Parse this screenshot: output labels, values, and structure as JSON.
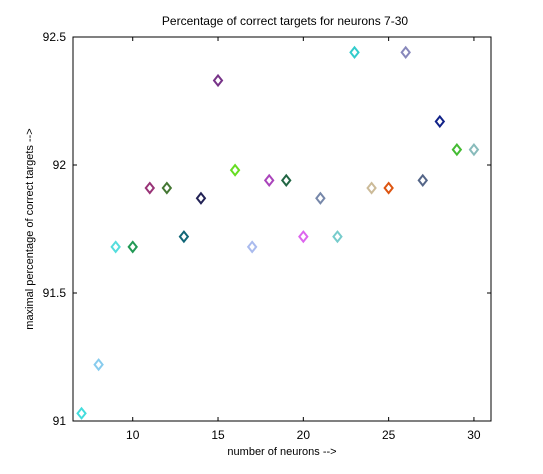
{
  "chart_data": {
    "type": "scatter",
    "title": "Percentage of correct targets for neurons 7-30",
    "xlabel": "number of neurons -->",
    "ylabel": "maximal percentage of correct targets -->",
    "xlim": [
      6.5,
      31
    ],
    "ylim": [
      91,
      92.5
    ],
    "xticks": [
      10,
      15,
      20,
      25,
      30
    ],
    "xtick_labels": [
      "10",
      "15",
      "20",
      "25",
      "30"
    ],
    "yticks": [
      91,
      91.5,
      92,
      92.5
    ],
    "ytick_labels": [
      "91",
      "91.5",
      "92",
      "92.5"
    ],
    "grid": false,
    "marker": "diamond",
    "points": [
      {
        "x": 7,
        "y": 91.03,
        "color": "#44dddd"
      },
      {
        "x": 8,
        "y": 91.22,
        "color": "#88ccee"
      },
      {
        "x": 9,
        "y": 91.68,
        "color": "#55dddd"
      },
      {
        "x": 10,
        "y": 91.68,
        "color": "#229955"
      },
      {
        "x": 11,
        "y": 91.91,
        "color": "#993377"
      },
      {
        "x": 12,
        "y": 91.91,
        "color": "#447733"
      },
      {
        "x": 13,
        "y": 91.72,
        "color": "#116677"
      },
      {
        "x": 14,
        "y": 91.87,
        "color": "#222255"
      },
      {
        "x": 15,
        "y": 92.33,
        "color": "#773388"
      },
      {
        "x": 16,
        "y": 91.98,
        "color": "#66dd22"
      },
      {
        "x": 17,
        "y": 91.68,
        "color": "#aabbee"
      },
      {
        "x": 18,
        "y": 91.94,
        "color": "#aa44bb"
      },
      {
        "x": 19,
        "y": 91.94,
        "color": "#226644"
      },
      {
        "x": 20,
        "y": 91.72,
        "color": "#dd66ee"
      },
      {
        "x": 21,
        "y": 91.87,
        "color": "#7788aa"
      },
      {
        "x": 22,
        "y": 91.72,
        "color": "#77cccc"
      },
      {
        "x": 23,
        "y": 92.44,
        "color": "#33cccc"
      },
      {
        "x": 24,
        "y": 91.91,
        "color": "#ccbb99"
      },
      {
        "x": 25,
        "y": 91.91,
        "color": "#dd5511"
      },
      {
        "x": 26,
        "y": 92.44,
        "color": "#8888bb"
      },
      {
        "x": 27,
        "y": 91.94,
        "color": "#556688"
      },
      {
        "x": 28,
        "y": 92.17,
        "color": "#112288"
      },
      {
        "x": 29,
        "y": 92.06,
        "color": "#44bb33"
      },
      {
        "x": 30,
        "y": 92.06,
        "color": "#88bbbb"
      }
    ]
  }
}
